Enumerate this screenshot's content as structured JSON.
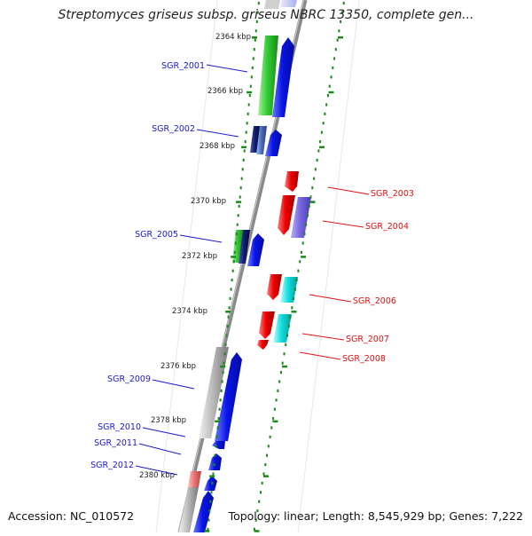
{
  "title": "Streptomyces griseus subsp. griseus NBRC 13350, complete gen...",
  "accession_text": "Accession: NC_010572",
  "summary_text": "Topology: linear; Length: 8,545,929 bp; Genes: 7,222",
  "ticks": [
    "2364 kbp",
    "2366 kbp",
    "2368 kbp",
    "2370 kbp",
    "2372 kbp",
    "2374 kbp",
    "2376 kbp",
    "2378 kbp",
    "2380 kbp"
  ],
  "genes_left": [
    "SGR_2001",
    "SGR_2002",
    "SGR_2005",
    "SGR_2009",
    "SGR_2010",
    "SGR_2011",
    "SGR_2012"
  ],
  "genes_right": [
    "SGR_2003",
    "SGR_2004",
    "SGR_2006",
    "SGR_2007",
    "SGR_2008"
  ],
  "colors": {
    "left_label": "#1a1acc",
    "right_label": "#dd1111",
    "tick_green": "#1a8a1a",
    "backbone": "#888888",
    "blue_gene": "#0a14e6",
    "green_gene": "#33cc33",
    "red_gene": "#ee0000",
    "cyan_gene": "#11dddd",
    "purple_gene": "#7766dd",
    "gray_gene": "#bbbbbb",
    "pink_gene": "#ee7777"
  }
}
